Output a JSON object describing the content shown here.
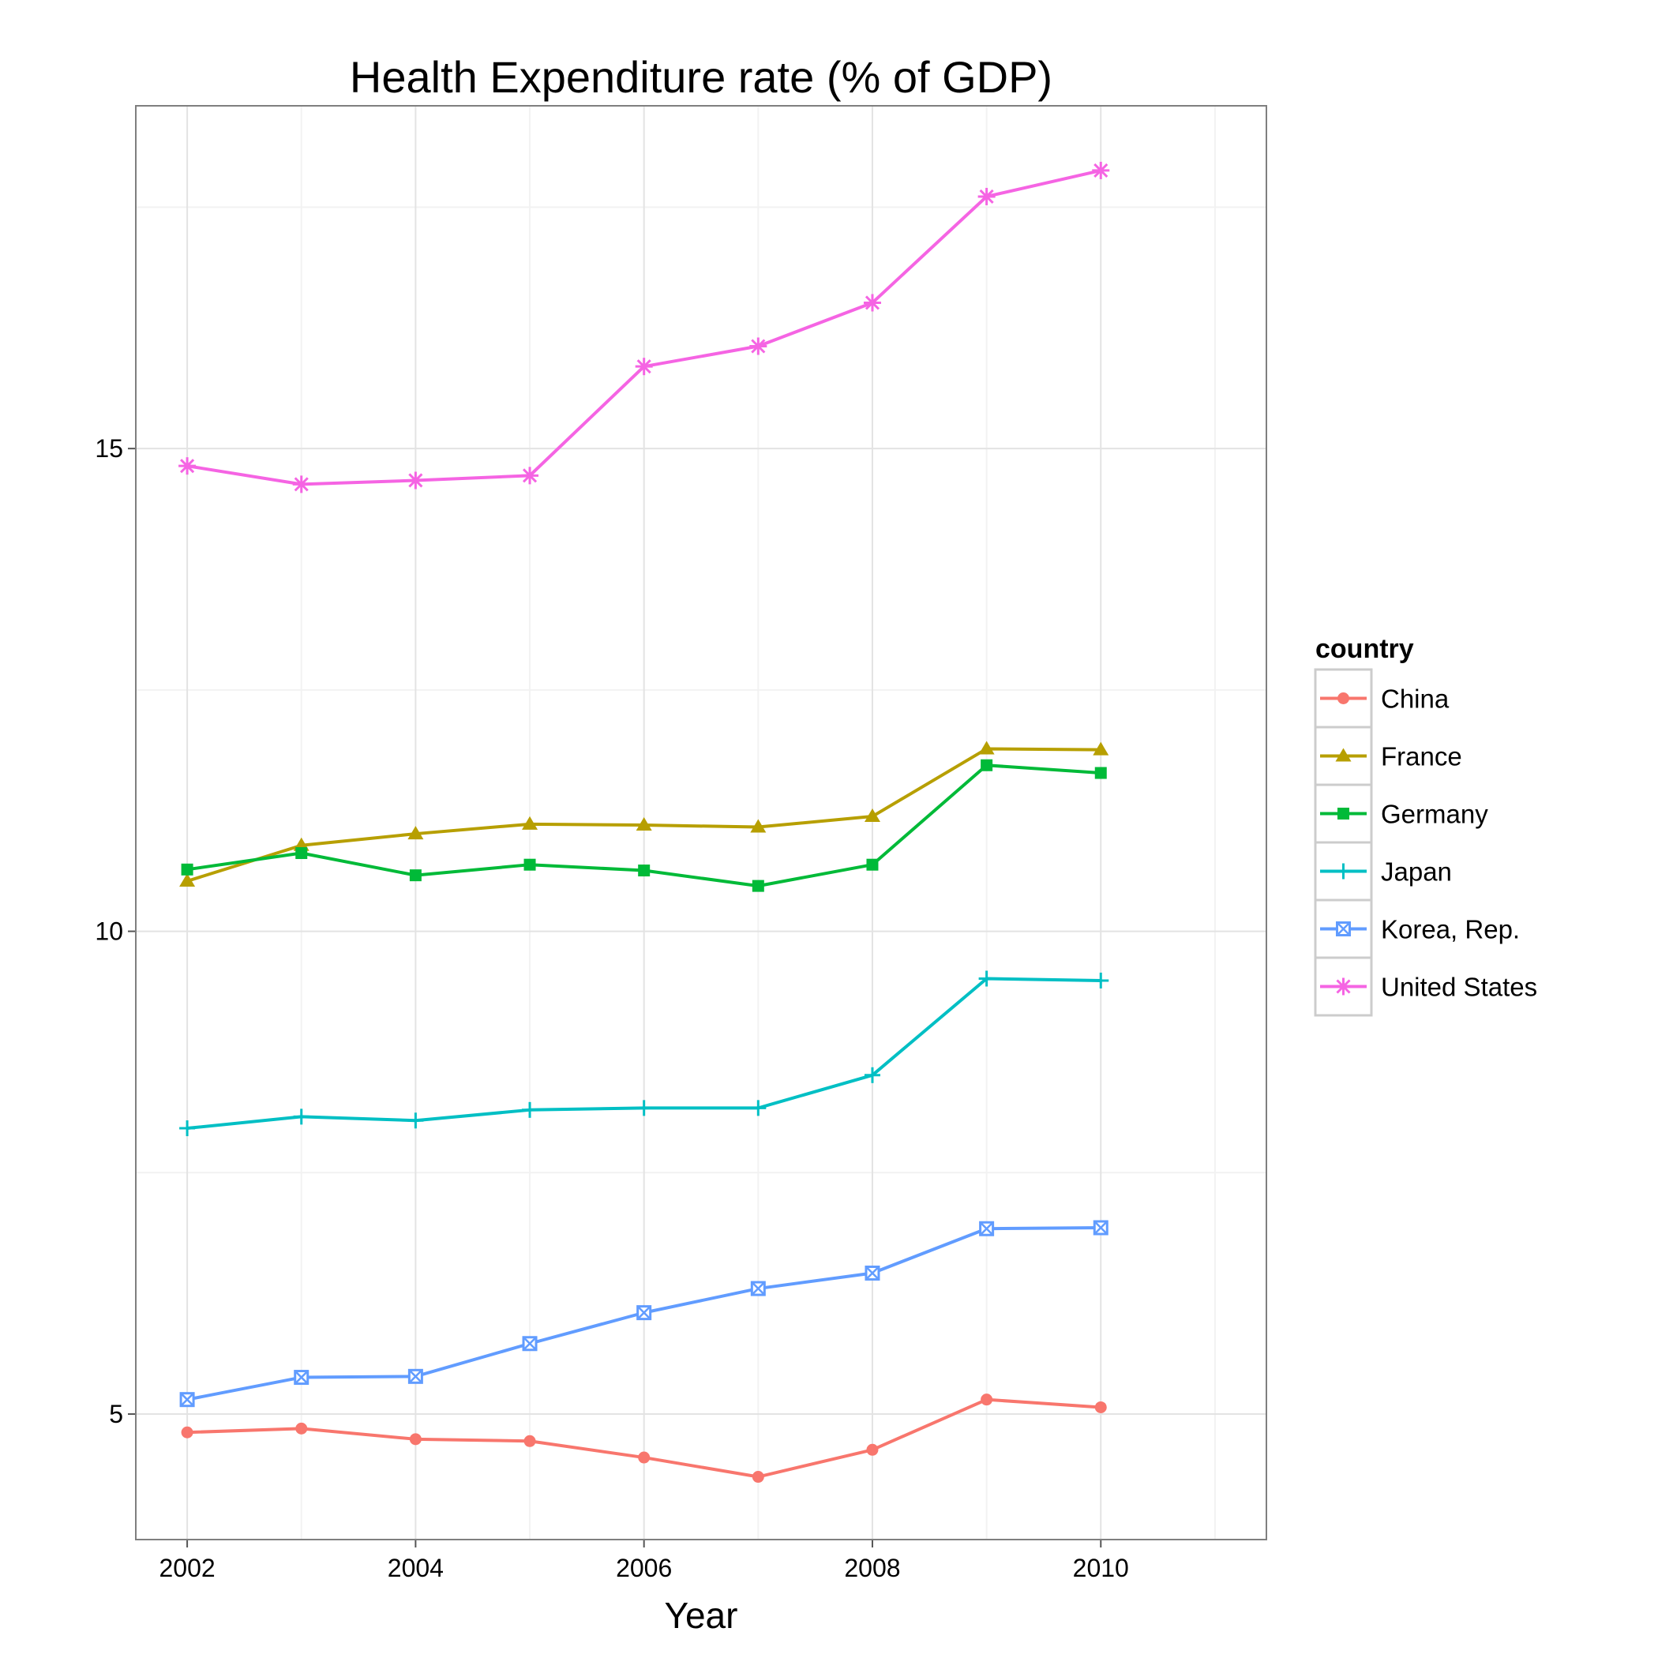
{
  "chart_data": {
    "type": "line",
    "title": "Health Expenditure rate (% of GDP)",
    "xlabel": "Year",
    "ylabel": "",
    "xlim": [
      2001.55,
      2011.45
    ],
    "ylim": [
      3.7,
      18.55
    ],
    "x_ticks": [
      2002,
      2004,
      2006,
      2008,
      2010
    ],
    "x_minor_ticks": [
      2003,
      2005,
      2007,
      2009,
      2011
    ],
    "y_ticks": [
      5,
      10,
      15
    ],
    "y_minor_ticks": [
      7.5,
      12.5,
      17.5
    ],
    "grid": true,
    "legend": {
      "title": "country",
      "position": "right"
    },
    "x": [
      2002,
      2003,
      2004,
      2005,
      2006,
      2007,
      2008,
      2009,
      2010
    ],
    "series": [
      {
        "name": "China",
        "color": "#F8766D",
        "marker": "circle",
        "values": [
          4.81,
          4.85,
          4.74,
          4.72,
          4.55,
          4.35,
          4.63,
          5.15,
          5.07
        ]
      },
      {
        "name": "France",
        "color": "#B79F00",
        "marker": "triangle",
        "values": [
          10.52,
          10.89,
          11.01,
          11.11,
          11.1,
          11.08,
          11.19,
          11.89,
          11.88
        ]
      },
      {
        "name": "Germany",
        "color": "#00BA38",
        "marker": "square",
        "values": [
          10.64,
          10.81,
          10.58,
          10.69,
          10.63,
          10.47,
          10.69,
          11.72,
          11.64
        ]
      },
      {
        "name": "Japan",
        "color": "#00BFC4",
        "marker": "plus",
        "values": [
          7.96,
          8.08,
          8.04,
          8.15,
          8.17,
          8.17,
          8.51,
          9.51,
          9.49
        ]
      },
      {
        "name": "Korea, Rep.",
        "color": "#619CFF",
        "marker": "square-x",
        "values": [
          5.15,
          5.38,
          5.39,
          5.73,
          6.05,
          6.3,
          6.46,
          6.92,
          6.93
        ]
      },
      {
        "name": "United States",
        "color": "#F564E3",
        "marker": "star",
        "values": [
          14.82,
          14.63,
          14.67,
          14.72,
          15.85,
          16.06,
          16.51,
          17.61,
          17.88
        ]
      }
    ]
  }
}
